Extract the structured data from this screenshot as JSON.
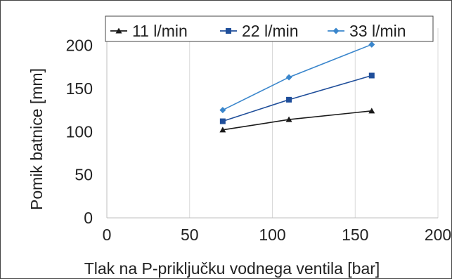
{
  "chart_data": {
    "type": "line",
    "title": "",
    "xlabel": "Tlak na P-priključku vodnega ventila [bar]",
    "ylabel": "Pomik batnice [mm]",
    "xlim": [
      0,
      200
    ],
    "ylim": [
      0,
      220
    ],
    "x_ticks": [
      0,
      50,
      100,
      150,
      200
    ],
    "y_ticks": [
      0,
      50,
      100,
      150,
      200
    ],
    "x_tick_labels": [
      "0",
      "50",
      "100",
      "150",
      "200"
    ],
    "y_tick_labels": [
      "0",
      "50",
      "100",
      "150",
      "200"
    ],
    "grid": "vertical",
    "legend_position": "top",
    "series": [
      {
        "name": "11 l/min",
        "color": "#1a1a1a",
        "marker": "triangle",
        "x": [
          70,
          110,
          160
        ],
        "y": [
          102,
          114,
          124
        ]
      },
      {
        "name": "22 l/min",
        "color": "#1f4e9a",
        "marker": "square",
        "x": [
          70,
          110,
          160
        ],
        "y": [
          112,
          137,
          165
        ]
      },
      {
        "name": "33 l/min",
        "color": "#3a86cc",
        "marker": "diamond",
        "x": [
          70,
          110,
          160
        ],
        "y": [
          125,
          163,
          201
        ]
      }
    ]
  }
}
